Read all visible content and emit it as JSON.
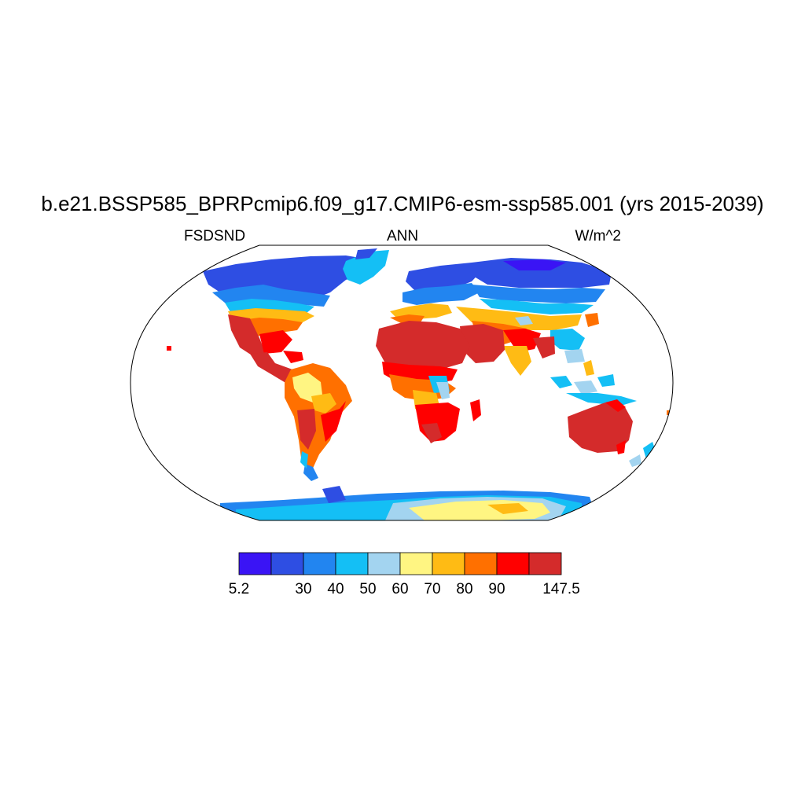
{
  "title": "b.e21.BSSP585_BPRPcmip6.f09_g17.CMIP6-esm-ssp585.001 (yrs 2015-2039)",
  "left_label": "FSDSND",
  "center_label": "ANN",
  "right_label": "W/m^2",
  "colorbar": {
    "colors": [
      "#3a14f5",
      "#2e4ee3",
      "#2285f0",
      "#14bff5",
      "#a3d4f0",
      "#fff582",
      "#ffbb14",
      "#ff7000",
      "#ff0000",
      "#d42b2b"
    ],
    "tick_labels": [
      "5.2",
      "30",
      "40",
      "50",
      "60",
      "70",
      "80",
      "90",
      "147.5"
    ]
  },
  "palette": {
    "ocean": "#ffffff",
    "border": "#000000"
  }
}
